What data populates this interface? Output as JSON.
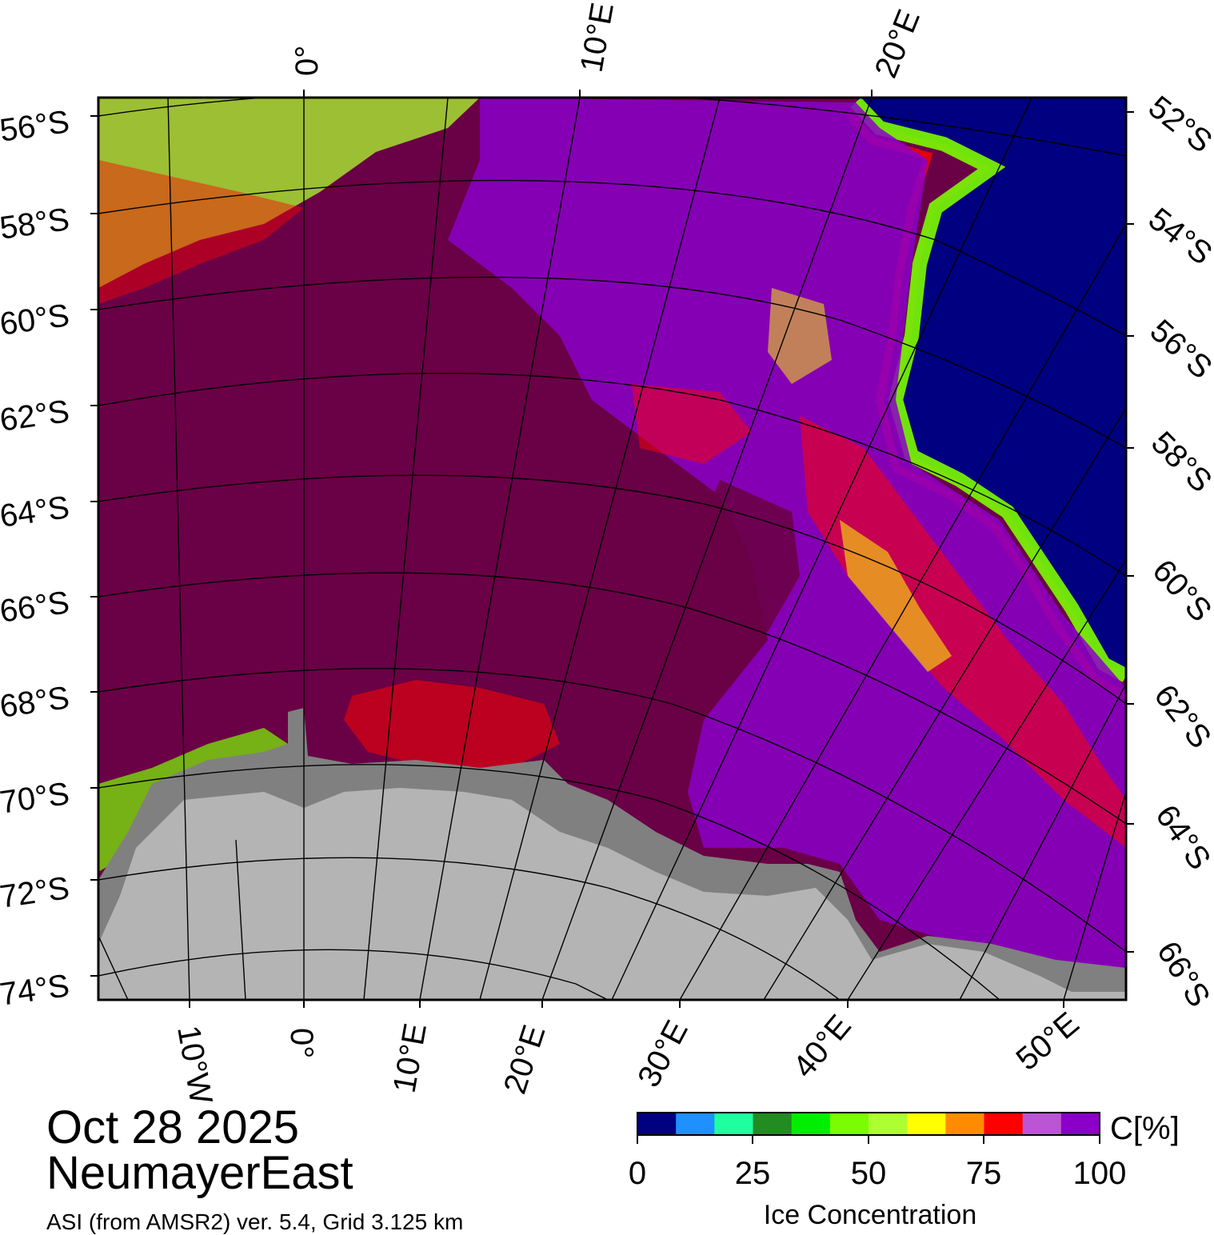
{
  "map": {
    "date": "Oct 28 2025",
    "region": "NeumayerEast",
    "product": "ASI (from AMSR2) ver. 5.4,  Grid 3.125 km",
    "lat_labels_left": [
      "56°S",
      "58°S",
      "60°S",
      "62°S",
      "64°S",
      "66°S",
      "68°S",
      "70°S",
      "72°S",
      "74°S"
    ],
    "lat_labels_right": [
      "52°S",
      "54°S",
      "56°S",
      "58°S",
      "60°S",
      "62°S",
      "64°S",
      "66°S"
    ],
    "lon_labels_top": [
      "0°",
      "10°E",
      "20°E"
    ],
    "lon_labels_bottom": [
      "10°W",
      "0°",
      "10°E",
      "20°E",
      "30°E",
      "40°E",
      "50°E"
    ],
    "colors": {
      "open_water": "#000080",
      "ice_100": "#6a0046",
      "ice_95": "#8a00c8",
      "land_ice": "#b4b4b4",
      "ice_shelf": "#808080"
    }
  },
  "colorbar": {
    "title": "Ice Concentration",
    "unit": "C[%]",
    "ticks": [
      "0",
      "25",
      "50",
      "75",
      "100"
    ],
    "colors": [
      "#000080",
      "#1e90ff",
      "#1effa0",
      "#228b22",
      "#00ee00",
      "#7cfc00",
      "#adff2f",
      "#ffff00",
      "#ff8c00",
      "#ff0000",
      "#ba55d3",
      "#8a00c8"
    ]
  }
}
